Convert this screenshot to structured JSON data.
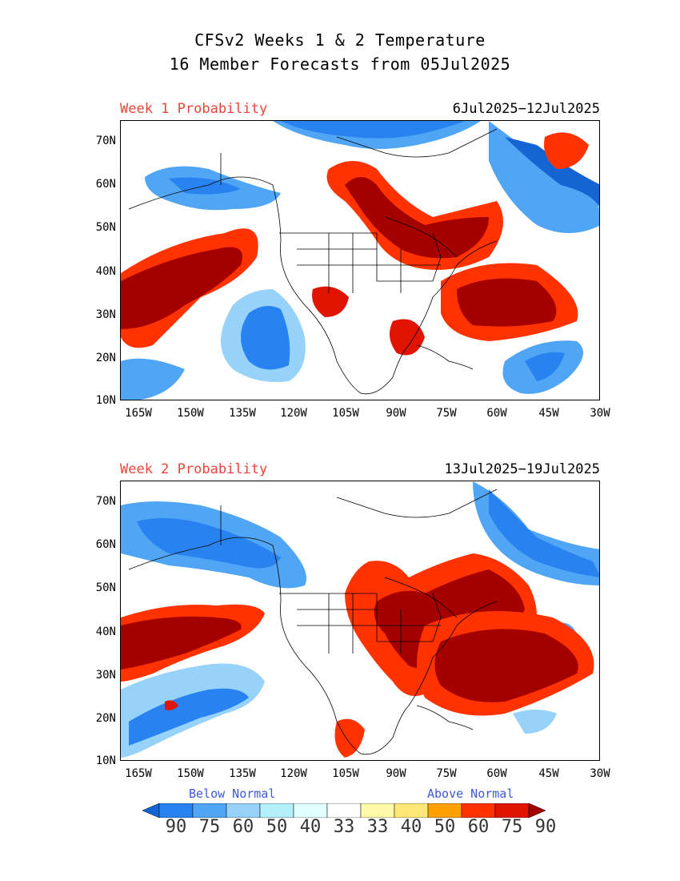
{
  "title": {
    "line1": "CFSv2 Weeks 1 & 2 Temperature",
    "line2": "16 Member Forecasts from 05Jul2025"
  },
  "panels": [
    {
      "label": "Week 1 Probability",
      "dates": "6Jul2025−12Jul2025"
    },
    {
      "label": "Week 2 Probability",
      "dates": "13Jul2025−19Jul2025"
    }
  ],
  "y_ticks": [
    "70N",
    "60N",
    "50N",
    "40N",
    "30N",
    "20N",
    "10N"
  ],
  "x_ticks": [
    "165W",
    "150W",
    "135W",
    "120W",
    "105W",
    "90W",
    "75W",
    "60W",
    "45W",
    "30W"
  ],
  "legend": {
    "below_label": "Below Normal",
    "above_label": "Above Normal",
    "values": [
      "90",
      "75",
      "60",
      "50",
      "40",
      "33",
      "33",
      "40",
      "50",
      "60",
      "75",
      "90"
    ],
    "colors": [
      "#1464d2",
      "#2882f0",
      "#50a5f5",
      "#96d2fa",
      "#b4f0fa",
      "#e1ffff",
      "#ffffff",
      "#fffaaa",
      "#ffe878",
      "#ffa000",
      "#ff3200",
      "#e11400",
      "#a50000"
    ]
  },
  "colors": {
    "label_red": "#e8463a",
    "legend_blue": "#3d5bd8"
  }
}
